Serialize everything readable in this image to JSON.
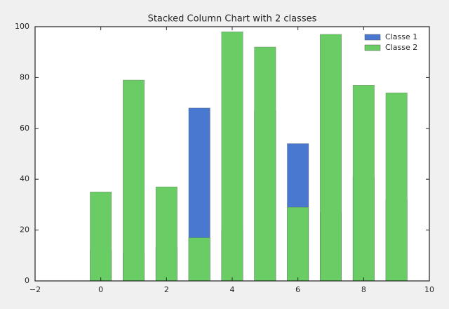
{
  "chart_data": {
    "type": "bar",
    "title": "Stacked Column Chart with 2 classes",
    "x": [
      0,
      1,
      2,
      3,
      4,
      5,
      6,
      7,
      8,
      9
    ],
    "series": [
      {
        "name": "Classe 1",
        "color": "#4878d0",
        "values": [
          12,
          11,
          13,
          68,
          20,
          67,
          54,
          27,
          41,
          32
        ]
      },
      {
        "name": "Classe 2",
        "color": "#6acc64",
        "values": [
          35,
          79,
          37,
          17,
          98,
          92,
          29,
          97,
          77,
          74
        ]
      }
    ],
    "xlim": [
      -2,
      10
    ],
    "xticks": [
      {
        "value": -2,
        "label": "−2"
      },
      0,
      2,
      4,
      6,
      8,
      10
    ],
    "ylim": [
      0,
      100
    ],
    "yticks": [
      0,
      20,
      40,
      60,
      80,
      100
    ],
    "legend": "upper right"
  }
}
